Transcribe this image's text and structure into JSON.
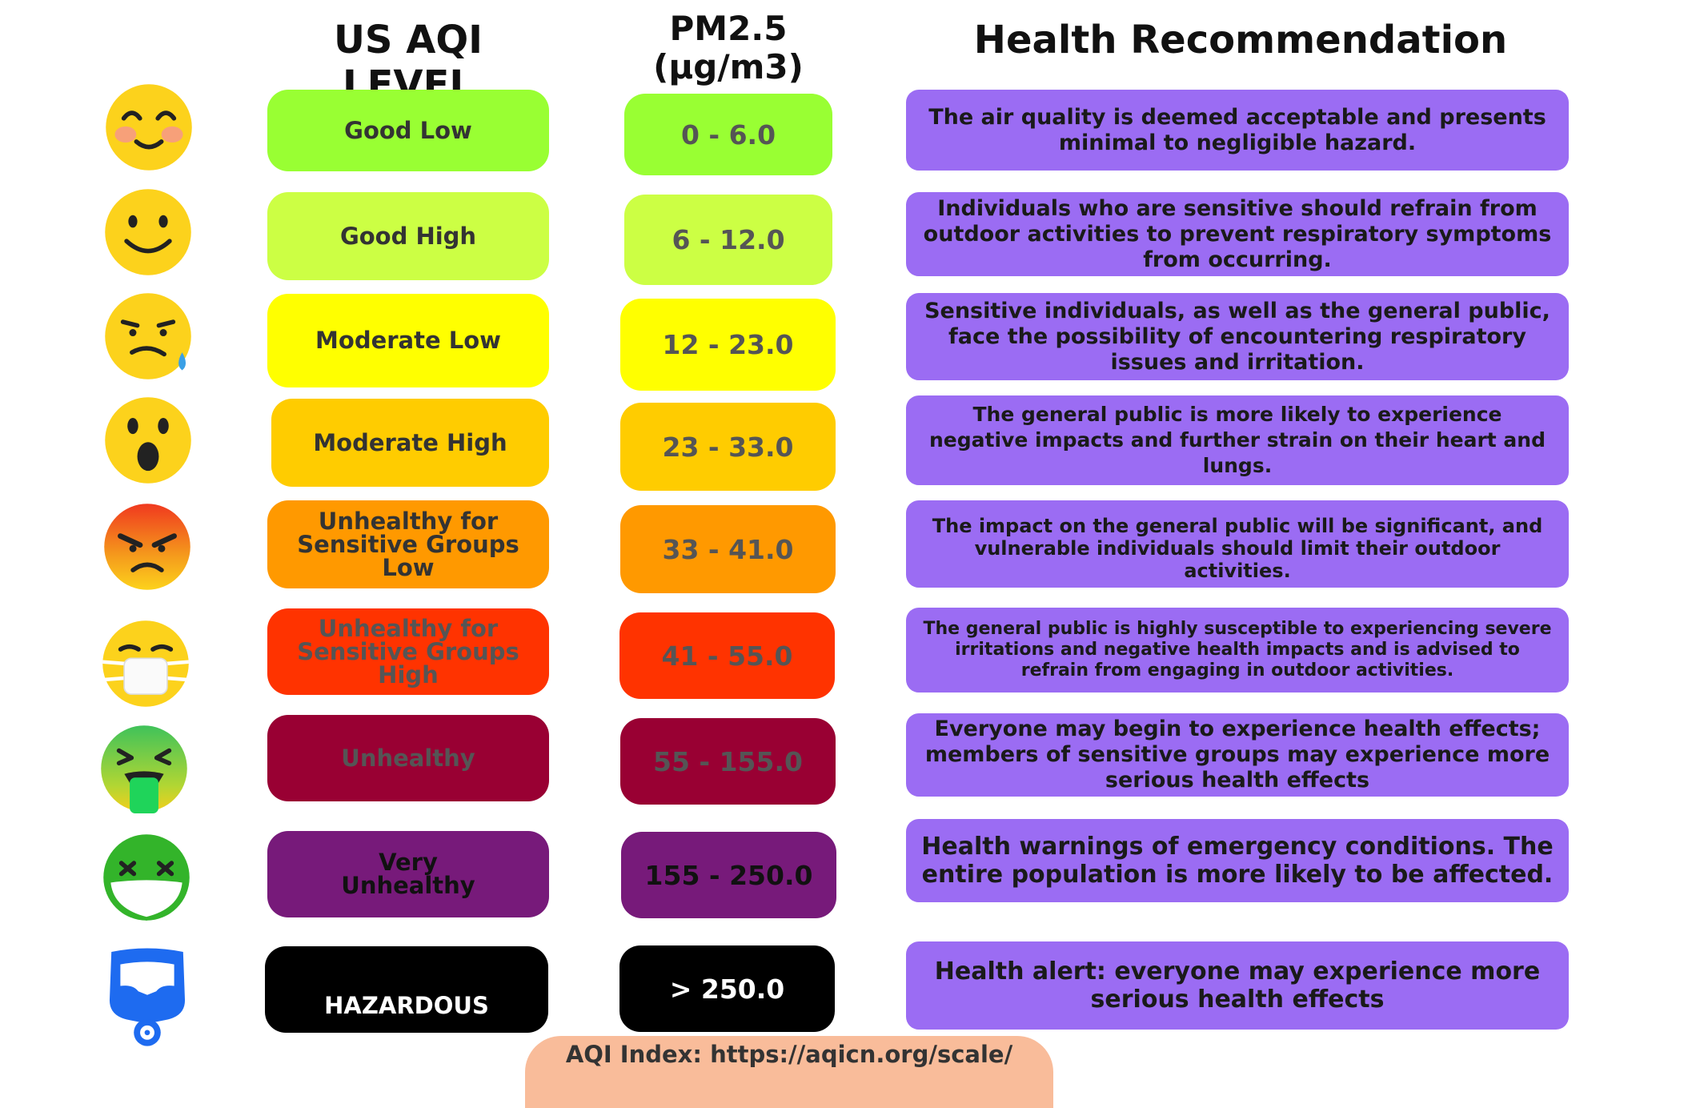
{
  "headers": {
    "aqi": "US AQI LEVEL",
    "pm": "PM2.5\n(μg/m3)",
    "health": "Health Recommendation"
  },
  "rows": [
    {
      "icon": "smiling-blush-face-icon",
      "level": "Good Low",
      "pm": "0 - 6.0",
      "rec": "The air quality is deemed acceptable and presents minimal to negligible hazard.",
      "level_color": "#99ff33",
      "pm_color": "#99ff33",
      "level_text": "#333333",
      "pm_text": "#555555"
    },
    {
      "icon": "slight-smile-face-icon",
      "level": "Good High",
      "pm": "6 - 12.0",
      "rec": "Individuals who are sensitive should refrain from outdoor activities to prevent respiratory symptoms from occurring.",
      "level_color": "#ccff44",
      "pm_color": "#ccff44",
      "level_text": "#333333",
      "pm_text": "#555555"
    },
    {
      "icon": "sad-sweat-face-icon",
      "level": "Moderate Low",
      "pm": "12 - 23.0",
      "rec": "Sensitive individuals, as well as the general public, face the possibility of encountering respiratory issues and irritation.",
      "level_color": "#ffff00",
      "pm_color": "#ffff00",
      "level_text": "#333333",
      "pm_text": "#555555"
    },
    {
      "icon": "surprised-face-icon",
      "level": "Moderate High",
      "pm": "23 - 33.0",
      "rec": "The general public is more likely to experience negative impacts and further strain on their heart and lungs.",
      "level_color": "#ffcc00",
      "pm_color": "#ffcc00",
      "level_text": "#333333",
      "pm_text": "#555555"
    },
    {
      "icon": "angry-face-icon",
      "level": "Unhealthy for\nSensitive Groups\nLow",
      "pm": "33 - 41.0",
      "rec": "The impact on the general public will be significant, and vulnerable individuals should limit their outdoor activities.",
      "level_color": "#ff9900",
      "pm_color": "#ff9900",
      "level_text": "#333333",
      "pm_text": "#555555"
    },
    {
      "icon": "medical-mask-face-icon",
      "level": "Unhealthy for\nSensitive Groups\nHigh",
      "pm": "41 - 55.0",
      "rec": "The general public is highly susceptible to experiencing severe irritations and negative health impacts and is advised to refrain from engaging in outdoor activities.",
      "level_color": "#ff3300",
      "pm_color": "#ff3300",
      "level_text": "#555555",
      "pm_text": "#555555"
    },
    {
      "icon": "vomiting-face-icon",
      "level": "Unhealthy",
      "pm": "55 - 155.0",
      "rec": "Everyone may begin to experience health effects; members of sensitive groups may experience more serious health effects",
      "level_color": "#990033",
      "pm_color": "#990033",
      "level_text": "#555555",
      "pm_text": "#555555"
    },
    {
      "icon": "dizzy-masked-face-icon",
      "level": "Very\nUnhealthy",
      "pm": "155 - 250.0",
      "rec": "Health warnings of emergency conditions. The entire population is more likely to be affected.",
      "level_color": "#771a7a",
      "pm_color": "#771a7a",
      "level_text": "#111111",
      "pm_text": "#111111"
    },
    {
      "icon": "gas-mask-icon",
      "level": "HAZARDOUS",
      "pm": "> 250.0",
      "rec": "Health alert: everyone may experience more serious health effects",
      "level_color": "#000000",
      "pm_color": "#000000",
      "level_text": "#ffffff",
      "pm_text": "#ffffff"
    }
  ],
  "footer": "AQI Index: https://aqicn.org/scale/"
}
